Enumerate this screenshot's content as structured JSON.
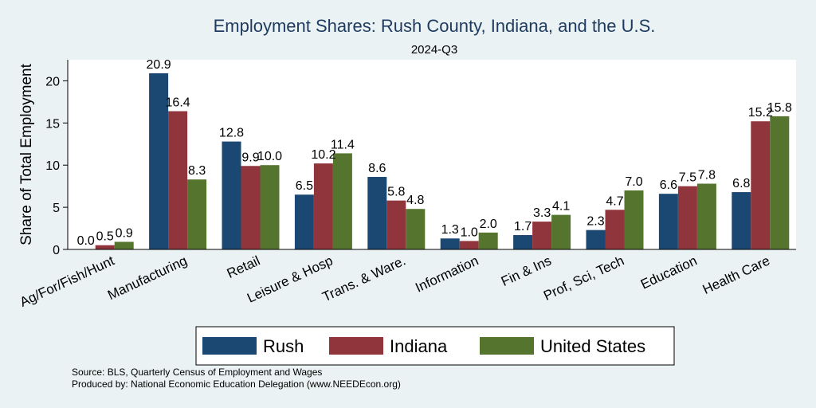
{
  "chart_data": {
    "type": "bar",
    "title": "Employment Shares: Rush County, Indiana, and the U.S.",
    "subtitle": "2024-Q3",
    "xlabel": "",
    "ylabel": "Share of Total Employment",
    "ylim": [
      0,
      22.5
    ],
    "yticks": [
      0,
      5,
      10,
      15,
      20
    ],
    "categories": [
      "Ag/For/Fish/Hunt",
      "Manufacturing",
      "Retail",
      "Leisure & Hosp",
      "Trans. & Ware.",
      "Information",
      "Fin & Ins",
      "Prof, Sci, Tech",
      "Education",
      "Health Care"
    ],
    "series": [
      {
        "name": "Rush",
        "color": "#1a4872",
        "values": [
          0.0,
          20.9,
          12.8,
          6.5,
          8.6,
          1.3,
          1.7,
          2.3,
          6.6,
          6.8
        ]
      },
      {
        "name": "Indiana",
        "color": "#90353b",
        "values": [
          0.5,
          16.4,
          9.9,
          10.2,
          5.8,
          1.0,
          3.3,
          4.7,
          7.5,
          15.2
        ]
      },
      {
        "name": "United States",
        "color": "#55752f",
        "values": [
          0.9,
          8.3,
          10.0,
          11.4,
          4.8,
          2.0,
          4.1,
          7.0,
          7.8,
          15.8
        ]
      }
    ],
    "legend_position": "bottom",
    "grid": false
  },
  "source": {
    "line1": "Source: BLS, Quarterly Census of Employment and Wages",
    "line2": "Produced by: National Economic Education Delegation (www.NEEDEcon.org)"
  }
}
